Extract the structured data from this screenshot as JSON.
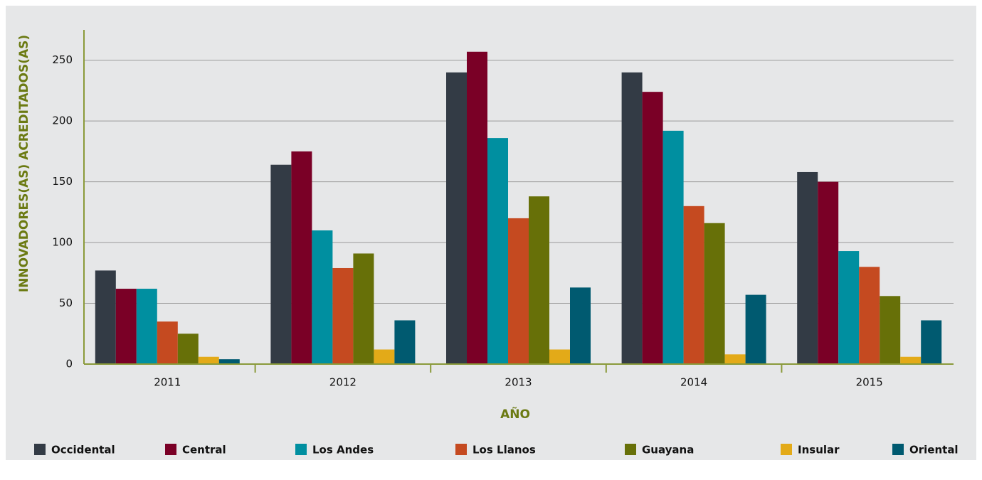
{
  "chart_data": {
    "type": "bar",
    "xlabel": "AÑO",
    "ylabel": "INNOVADORES(AS) ACREDITADOS(AS)",
    "categories": [
      "2011",
      "2012",
      "2013",
      "2014",
      "2015"
    ],
    "series": [
      {
        "name": "Occidental",
        "color": "#333b45",
        "values": [
          77,
          164,
          240,
          240,
          158
        ]
      },
      {
        "name": "Central",
        "color": "#7a0026",
        "values": [
          62,
          175,
          257,
          224,
          150
        ]
      },
      {
        "name": "Los Andes",
        "color": "#008fa0",
        "values": [
          62,
          110,
          186,
          192,
          93
        ]
      },
      {
        "name": "Los Llanos",
        "color": "#c54a20",
        "values": [
          35,
          79,
          120,
          130,
          80
        ]
      },
      {
        "name": "Guayana",
        "color": "#677008",
        "values": [
          25,
          91,
          138,
          116,
          56
        ]
      },
      {
        "name": "Insular",
        "color": "#e3aa18",
        "values": [
          6,
          12,
          12,
          8,
          6
        ]
      },
      {
        "name": "Oriental",
        "color": "#005a70",
        "values": [
          4,
          36,
          63,
          57,
          36
        ]
      }
    ],
    "ylim": [
      0,
      275
    ],
    "yticks": [
      0,
      50,
      100,
      150,
      200,
      250
    ],
    "grid": true,
    "legend": "bottom"
  }
}
